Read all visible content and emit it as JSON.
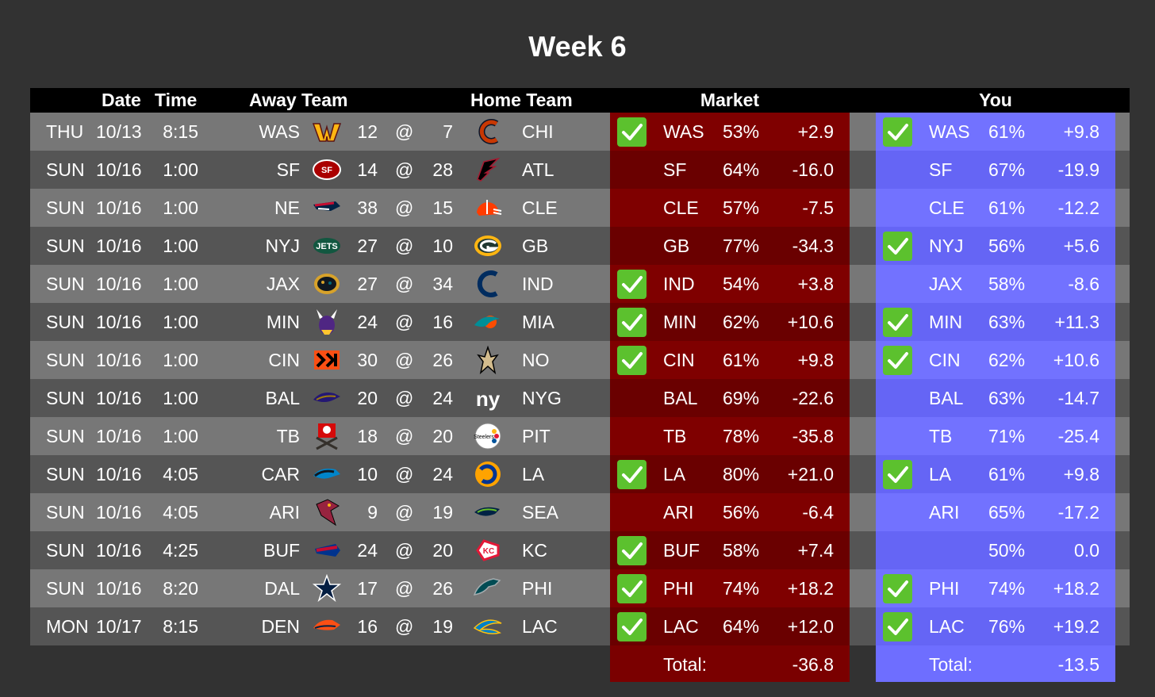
{
  "title": "Week 6",
  "headers": {
    "date": "Date",
    "time": "Time",
    "away": "Away Team",
    "home": "Home Team",
    "market": "Market",
    "you": "You"
  },
  "colors": {
    "market": "#7f0000",
    "you": "#7272ff",
    "check": "#5cc12e"
  },
  "games": [
    {
      "day": "THU",
      "date": "10/13",
      "time": "8:15",
      "away": "WAS",
      "away_score": "12",
      "at": "@",
      "home_score": "7",
      "home": "CHI",
      "away_logo": "commanders-logo",
      "home_logo": "bears-logo",
      "market": {
        "check": true,
        "pick": "WAS",
        "pct": "53%",
        "pts": "+2.9"
      },
      "you": {
        "check": true,
        "pick": "WAS",
        "pct": "61%",
        "pts": "+9.8"
      }
    },
    {
      "day": "SUN",
      "date": "10/16",
      "time": "1:00",
      "away": "SF",
      "away_score": "14",
      "at": "@",
      "home_score": "28",
      "home": "ATL",
      "away_logo": "49ers-logo",
      "home_logo": "falcons-logo",
      "market": {
        "check": false,
        "pick": "SF",
        "pct": "64%",
        "pts": "-16.0"
      },
      "you": {
        "check": false,
        "pick": "SF",
        "pct": "67%",
        "pts": "-19.9"
      }
    },
    {
      "day": "SUN",
      "date": "10/16",
      "time": "1:00",
      "away": "NE",
      "away_score": "38",
      "at": "@",
      "home_score": "15",
      "home": "CLE",
      "away_logo": "patriots-logo",
      "home_logo": "browns-logo",
      "market": {
        "check": false,
        "pick": "CLE",
        "pct": "57%",
        "pts": "-7.5"
      },
      "you": {
        "check": false,
        "pick": "CLE",
        "pct": "61%",
        "pts": "-12.2"
      }
    },
    {
      "day": "SUN",
      "date": "10/16",
      "time": "1:00",
      "away": "NYJ",
      "away_score": "27",
      "at": "@",
      "home_score": "10",
      "home": "GB",
      "away_logo": "jets-logo",
      "home_logo": "packers-logo",
      "market": {
        "check": false,
        "pick": "GB",
        "pct": "77%",
        "pts": "-34.3"
      },
      "you": {
        "check": true,
        "pick": "NYJ",
        "pct": "56%",
        "pts": "+5.6"
      }
    },
    {
      "day": "SUN",
      "date": "10/16",
      "time": "1:00",
      "away": "JAX",
      "away_score": "27",
      "at": "@",
      "home_score": "34",
      "home": "IND",
      "away_logo": "jaguars-logo",
      "home_logo": "colts-logo",
      "market": {
        "check": true,
        "pick": "IND",
        "pct": "54%",
        "pts": "+3.8"
      },
      "you": {
        "check": false,
        "pick": "JAX",
        "pct": "58%",
        "pts": "-8.6"
      }
    },
    {
      "day": "SUN",
      "date": "10/16",
      "time": "1:00",
      "away": "MIN",
      "away_score": "24",
      "at": "@",
      "home_score": "16",
      "home": "MIA",
      "away_logo": "vikings-logo",
      "home_logo": "dolphins-logo",
      "market": {
        "check": true,
        "pick": "MIN",
        "pct": "62%",
        "pts": "+10.6"
      },
      "you": {
        "check": true,
        "pick": "MIN",
        "pct": "63%",
        "pts": "+11.3"
      }
    },
    {
      "day": "SUN",
      "date": "10/16",
      "time": "1:00",
      "away": "CIN",
      "away_score": "30",
      "at": "@",
      "home_score": "26",
      "home": "NO",
      "away_logo": "bengals-logo",
      "home_logo": "saints-logo",
      "market": {
        "check": true,
        "pick": "CIN",
        "pct": "61%",
        "pts": "+9.8"
      },
      "you": {
        "check": true,
        "pick": "CIN",
        "pct": "62%",
        "pts": "+10.6"
      }
    },
    {
      "day": "SUN",
      "date": "10/16",
      "time": "1:00",
      "away": "BAL",
      "away_score": "20",
      "at": "@",
      "home_score": "24",
      "home": "NYG",
      "away_logo": "ravens-logo",
      "home_logo": "giants-logo",
      "market": {
        "check": false,
        "pick": "BAL",
        "pct": "69%",
        "pts": "-22.6"
      },
      "you": {
        "check": false,
        "pick": "BAL",
        "pct": "63%",
        "pts": "-14.7"
      }
    },
    {
      "day": "SUN",
      "date": "10/16",
      "time": "1:00",
      "away": "TB",
      "away_score": "18",
      "at": "@",
      "home_score": "20",
      "home": "PIT",
      "away_logo": "buccaneers-logo",
      "home_logo": "steelers-logo",
      "market": {
        "check": false,
        "pick": "TB",
        "pct": "78%",
        "pts": "-35.8"
      },
      "you": {
        "check": false,
        "pick": "TB",
        "pct": "71%",
        "pts": "-25.4"
      }
    },
    {
      "day": "SUN",
      "date": "10/16",
      "time": "4:05",
      "away": "CAR",
      "away_score": "10",
      "at": "@",
      "home_score": "24",
      "home": "LA",
      "away_logo": "panthers-logo",
      "home_logo": "rams-logo",
      "market": {
        "check": true,
        "pick": "LA",
        "pct": "80%",
        "pts": "+21.0"
      },
      "you": {
        "check": true,
        "pick": "LA",
        "pct": "61%",
        "pts": "+9.8"
      }
    },
    {
      "day": "SUN",
      "date": "10/16",
      "time": "4:05",
      "away": "ARI",
      "away_score": "9",
      "at": "@",
      "home_score": "19",
      "home": "SEA",
      "away_logo": "cardinals-logo",
      "home_logo": "seahawks-logo",
      "market": {
        "check": false,
        "pick": "ARI",
        "pct": "56%",
        "pts": "-6.4"
      },
      "you": {
        "check": false,
        "pick": "ARI",
        "pct": "65%",
        "pts": "-17.2"
      }
    },
    {
      "day": "SUN",
      "date": "10/16",
      "time": "4:25",
      "away": "BUF",
      "away_score": "24",
      "at": "@",
      "home_score": "20",
      "home": "KC",
      "away_logo": "bills-logo",
      "home_logo": "chiefs-logo",
      "market": {
        "check": true,
        "pick": "BUF",
        "pct": "58%",
        "pts": "+7.4"
      },
      "you": {
        "check": false,
        "pick": "",
        "pct": "50%",
        "pts": "0.0"
      }
    },
    {
      "day": "SUN",
      "date": "10/16",
      "time": "8:20",
      "away": "DAL",
      "away_score": "17",
      "at": "@",
      "home_score": "26",
      "home": "PHI",
      "away_logo": "cowboys-logo",
      "home_logo": "eagles-logo",
      "market": {
        "check": true,
        "pick": "PHI",
        "pct": "74%",
        "pts": "+18.2"
      },
      "you": {
        "check": true,
        "pick": "PHI",
        "pct": "74%",
        "pts": "+18.2"
      }
    },
    {
      "day": "MON",
      "date": "10/17",
      "time": "8:15",
      "away": "DEN",
      "away_score": "16",
      "at": "@",
      "home_score": "19",
      "home": "LAC",
      "away_logo": "broncos-logo",
      "home_logo": "chargers-logo",
      "market": {
        "check": true,
        "pick": "LAC",
        "pct": "64%",
        "pts": "+12.0"
      },
      "you": {
        "check": true,
        "pick": "LAC",
        "pct": "76%",
        "pts": "+19.2"
      }
    }
  ],
  "totals": {
    "market": {
      "label": "Total:",
      "value": "-36.8"
    },
    "you": {
      "label": "Total:",
      "value": "-13.5"
    }
  }
}
